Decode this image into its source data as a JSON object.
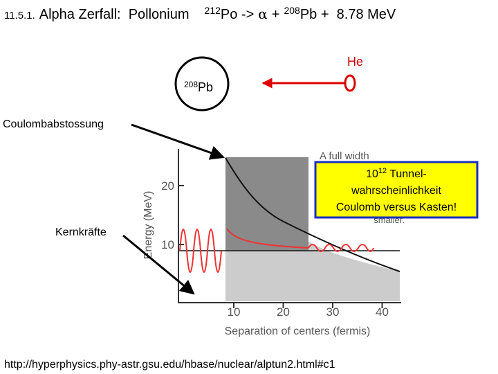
{
  "header": {
    "section": "11.5.1.",
    "title": "Alpha Zerfall:  Pollonium",
    "reaction": {
      "parent_mass": "212",
      "parent": "Po ->",
      "alpha": "α",
      "plus": "+",
      "daughter_mass": "208",
      "daughter": "Pb +  8.78 MeV"
    }
  },
  "diagram": {
    "alpha_label": "He",
    "nucleus_mass": "208",
    "nucleus": "Pb"
  },
  "annotations": {
    "coulomb": "Coulombabstossung",
    "nuclear": "Kernkräfte"
  },
  "callout": {
    "base": "10",
    "exponent": "12",
    "first": "Tunnel-",
    "lines": [
      "wahrscheinlichkeit",
      "Coulomb versus Kasten!"
    ]
  },
  "figure": {
    "caption_top": "A full width",
    "note": "smaller.",
    "y_label": "Energy (MeV)",
    "x_label": "Separation of centers (fermis)",
    "xticks": [
      10,
      20,
      30,
      40
    ],
    "yticks": [
      10,
      20
    ]
  },
  "footer": {
    "url": "http://hyperphysics.phy-astr.gsu.edu/hbase/nuclear/alptun2.html#c1"
  }
}
